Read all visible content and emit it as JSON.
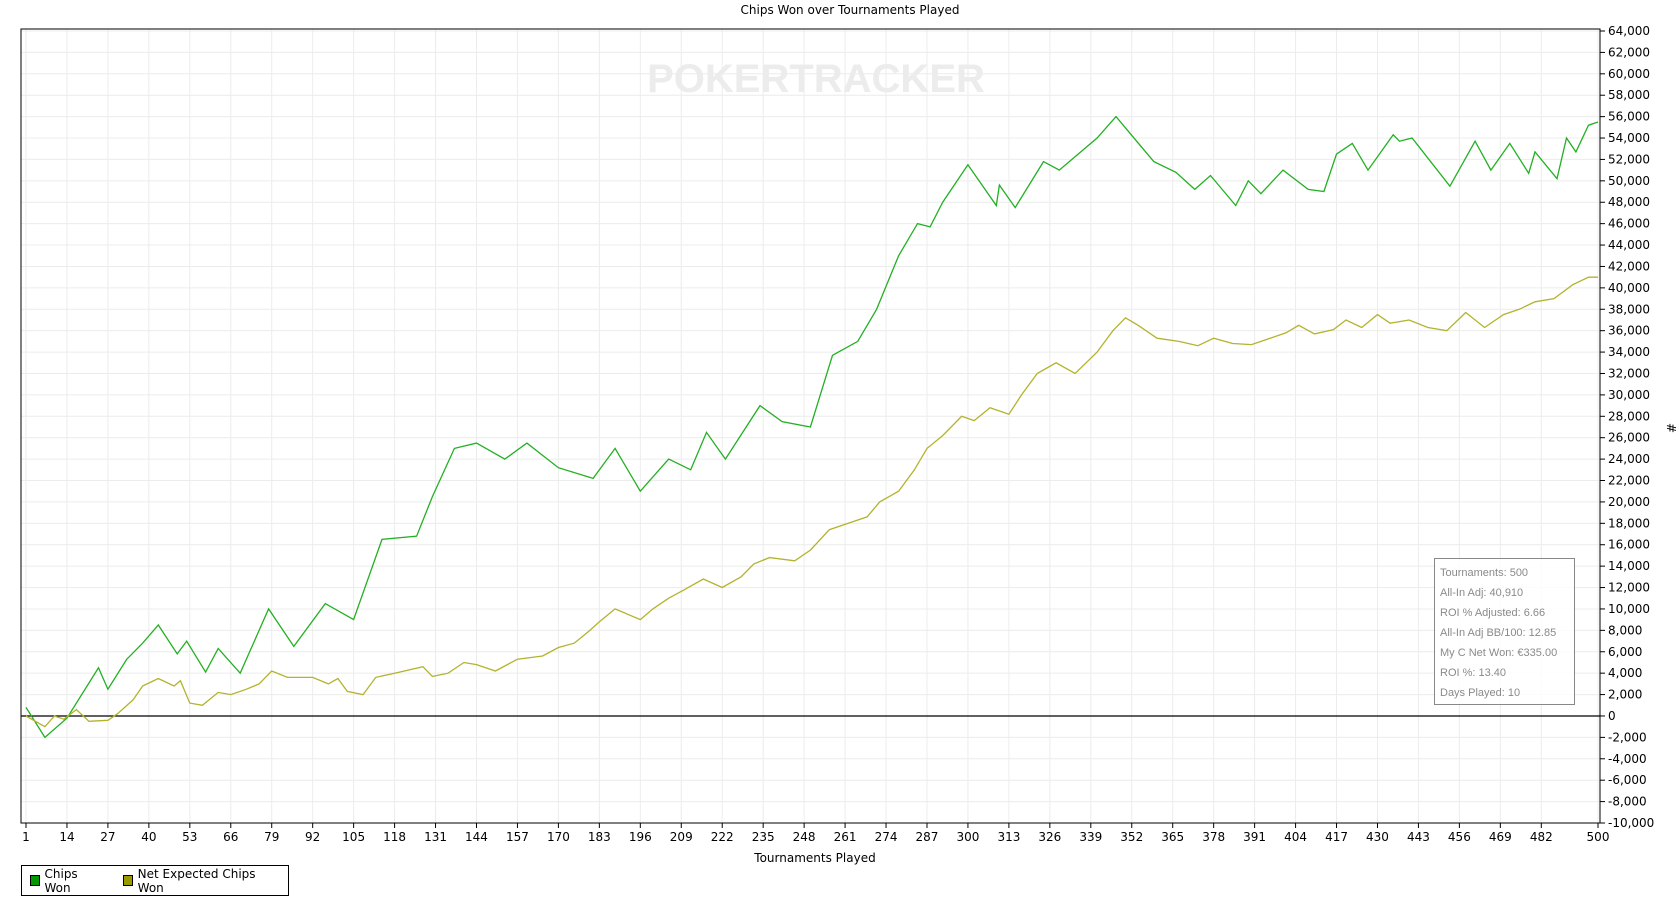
{
  "chart_data": {
    "type": "line",
    "title": "Chips Won over Tournaments Played",
    "xlabel": "Tournaments Played",
    "ylabel": "#",
    "watermark": "POKERTRACKER",
    "xlim": [
      1,
      500
    ],
    "ylim": [
      -10000,
      64000
    ],
    "x_ticks": [
      1,
      14,
      27,
      40,
      53,
      66,
      79,
      92,
      105,
      118,
      131,
      144,
      157,
      170,
      183,
      196,
      209,
      222,
      235,
      248,
      261,
      274,
      287,
      300,
      313,
      326,
      339,
      352,
      365,
      378,
      391,
      404,
      417,
      430,
      443,
      456,
      469,
      482,
      500
    ],
    "y_ticks": [
      -10000,
      -8000,
      -6000,
      -4000,
      -2000,
      0,
      2000,
      4000,
      6000,
      8000,
      10000,
      12000,
      14000,
      16000,
      18000,
      20000,
      22000,
      24000,
      26000,
      28000,
      30000,
      32000,
      34000,
      36000,
      38000,
      40000,
      42000,
      44000,
      46000,
      48000,
      50000,
      52000,
      54000,
      56000,
      58000,
      60000,
      62000,
      64000
    ],
    "grid": true,
    "legend_placement": "bottom-left",
    "series": [
      {
        "name": "Chips Won",
        "color": "#22b022",
        "legend_color": "#009900",
        "points": [
          [
            1,
            800
          ],
          [
            7,
            -2000
          ],
          [
            14,
            -200
          ],
          [
            24,
            4500
          ],
          [
            27,
            2500
          ],
          [
            33,
            5300
          ],
          [
            38,
            6800
          ],
          [
            43,
            8500
          ],
          [
            49,
            5800
          ],
          [
            52,
            7000
          ],
          [
            58,
            4100
          ],
          [
            62,
            6300
          ],
          [
            69,
            4000
          ],
          [
            78,
            10000
          ],
          [
            86,
            6500
          ],
          [
            96,
            10500
          ],
          [
            105,
            9000
          ],
          [
            114,
            16500
          ],
          [
            125,
            16800
          ],
          [
            130,
            20500
          ],
          [
            137,
            25000
          ],
          [
            144,
            25500
          ],
          [
            153,
            24000
          ],
          [
            160,
            25500
          ],
          [
            170,
            23200
          ],
          [
            181,
            22200
          ],
          [
            188,
            25000
          ],
          [
            196,
            21000
          ],
          [
            205,
            24000
          ],
          [
            212,
            23000
          ],
          [
            217,
            26500
          ],
          [
            223,
            24000
          ],
          [
            234,
            29000
          ],
          [
            241,
            27500
          ],
          [
            250,
            27000
          ],
          [
            257,
            33700
          ],
          [
            265,
            35000
          ],
          [
            271,
            38000
          ],
          [
            278,
            43000
          ],
          [
            284,
            46000
          ],
          [
            288,
            45700
          ],
          [
            292,
            48000
          ],
          [
            300,
            51500
          ],
          [
            309,
            47700
          ],
          [
            310,
            49600
          ],
          [
            315,
            47500
          ],
          [
            324,
            51800
          ],
          [
            329,
            51000
          ],
          [
            341,
            54000
          ],
          [
            347,
            56000
          ],
          [
            359,
            51800
          ],
          [
            366,
            50800
          ],
          [
            372,
            49200
          ],
          [
            377,
            50500
          ],
          [
            385,
            47700
          ],
          [
            389,
            50000
          ],
          [
            393,
            48800
          ],
          [
            400,
            51000
          ],
          [
            408,
            49200
          ],
          [
            413,
            49000
          ],
          [
            417,
            52500
          ],
          [
            422,
            53500
          ],
          [
            427,
            51000
          ],
          [
            435,
            54300
          ],
          [
            437,
            53700
          ],
          [
            441,
            54000
          ],
          [
            453,
            49500
          ],
          [
            461,
            53700
          ],
          [
            466,
            51000
          ],
          [
            472,
            53500
          ],
          [
            478,
            50700
          ],
          [
            480,
            52700
          ],
          [
            487,
            50200
          ],
          [
            490,
            54000
          ],
          [
            493,
            52700
          ],
          [
            497,
            55200
          ],
          [
            500,
            55500
          ]
        ]
      },
      {
        "name": "Net Expected Chips Won",
        "color": "#b3b32e",
        "legend_color": "#999900",
        "points": [
          [
            1,
            0
          ],
          [
            7,
            -1000
          ],
          [
            10,
            0
          ],
          [
            13,
            -300
          ],
          [
            17,
            600
          ],
          [
            21,
            -500
          ],
          [
            27,
            -400
          ],
          [
            30,
            200
          ],
          [
            35,
            1500
          ],
          [
            38,
            2800
          ],
          [
            43,
            3500
          ],
          [
            48,
            2800
          ],
          [
            50,
            3300
          ],
          [
            53,
            1200
          ],
          [
            57,
            1000
          ],
          [
            62,
            2200
          ],
          [
            66,
            2000
          ],
          [
            71,
            2500
          ],
          [
            75,
            3000
          ],
          [
            79,
            4200
          ],
          [
            84,
            3600
          ],
          [
            92,
            3600
          ],
          [
            97,
            3000
          ],
          [
            100,
            3500
          ],
          [
            103,
            2300
          ],
          [
            108,
            2000
          ],
          [
            112,
            3600
          ],
          [
            118,
            4000
          ],
          [
            127,
            4600
          ],
          [
            130,
            3700
          ],
          [
            135,
            4000
          ],
          [
            140,
            5000
          ],
          [
            144,
            4800
          ],
          [
            150,
            4200
          ],
          [
            157,
            5300
          ],
          [
            165,
            5600
          ],
          [
            170,
            6400
          ],
          [
            175,
            6800
          ],
          [
            180,
            8000
          ],
          [
            183,
            8800
          ],
          [
            188,
            10000
          ],
          [
            196,
            9000
          ],
          [
            200,
            10000
          ],
          [
            205,
            11000
          ],
          [
            210,
            11800
          ],
          [
            216,
            12800
          ],
          [
            222,
            12000
          ],
          [
            228,
            13000
          ],
          [
            232,
            14200
          ],
          [
            237,
            14800
          ],
          [
            245,
            14500
          ],
          [
            250,
            15500
          ],
          [
            256,
            17400
          ],
          [
            262,
            18000
          ],
          [
            268,
            18600
          ],
          [
            272,
            20000
          ],
          [
            278,
            21000
          ],
          [
            283,
            23000
          ],
          [
            287,
            25000
          ],
          [
            292,
            26200
          ],
          [
            298,
            28000
          ],
          [
            302,
            27600
          ],
          [
            307,
            28800
          ],
          [
            313,
            28200
          ],
          [
            317,
            30000
          ],
          [
            322,
            32000
          ],
          [
            328,
            33000
          ],
          [
            334,
            32000
          ],
          [
            341,
            34000
          ],
          [
            346,
            36000
          ],
          [
            350,
            37200
          ],
          [
            354,
            36500
          ],
          [
            360,
            35300
          ],
          [
            367,
            35000
          ],
          [
            373,
            34600
          ],
          [
            378,
            35300
          ],
          [
            384,
            34800
          ],
          [
            390,
            34700
          ],
          [
            395,
            35200
          ],
          [
            401,
            35800
          ],
          [
            405,
            36500
          ],
          [
            410,
            35700
          ],
          [
            416,
            36100
          ],
          [
            420,
            37000
          ],
          [
            425,
            36300
          ],
          [
            430,
            37500
          ],
          [
            434,
            36700
          ],
          [
            440,
            37000
          ],
          [
            446,
            36300
          ],
          [
            452,
            36000
          ],
          [
            458,
            37700
          ],
          [
            464,
            36300
          ],
          [
            470,
            37500
          ],
          [
            475,
            38000
          ],
          [
            480,
            38700
          ],
          [
            486,
            39000
          ],
          [
            492,
            40300
          ],
          [
            497,
            41000
          ],
          [
            500,
            41000
          ]
        ]
      }
    ],
    "stats_box": [
      "Tournaments: 500",
      "All-In Adj: 40,910",
      "ROI % Adjusted: 6.66",
      "All-In Adj BB/100: 12.85",
      "My C Net Won: €335.00",
      "ROI %: 13.40",
      "Days Played: 10"
    ]
  }
}
